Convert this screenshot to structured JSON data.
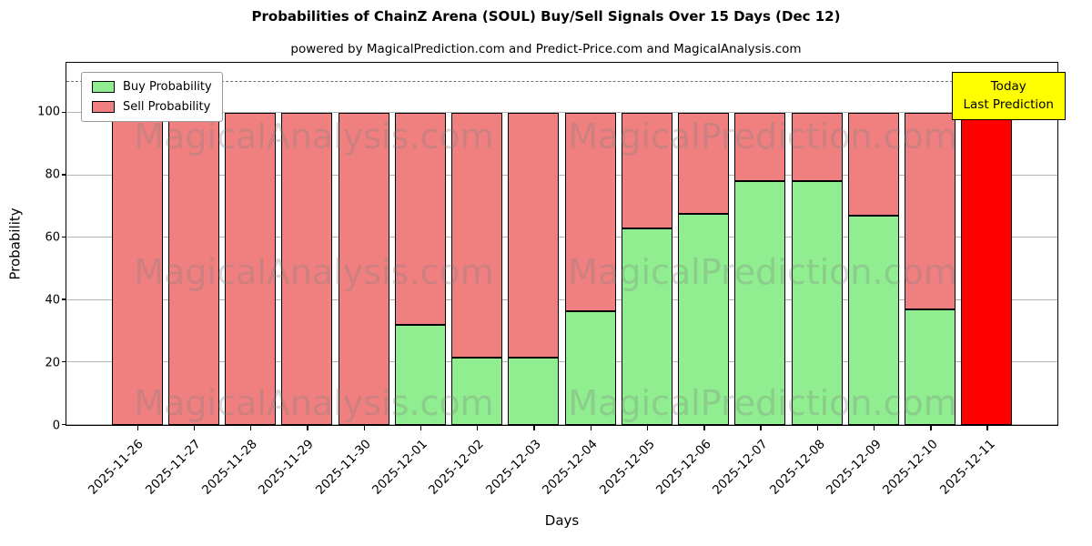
{
  "annotation_box": {
    "line1": "Today",
    "line2": "Last Prediction",
    "bg_color": "#ffff00"
  },
  "watermarks": {
    "left": "MagicalAnalysis.com",
    "right": "MagicalPrediction.com"
  },
  "chart_data": {
    "type": "bar",
    "stacked": true,
    "title": "Probabilities of ChainZ Arena (SOUL) Buy/Sell Signals Over 15 Days (Dec 12)",
    "subtitle": "powered by MagicalPrediction.com and Predict-Price.com and MagicalAnalysis.com",
    "xlabel": "Days",
    "ylabel": "Probability",
    "categories": [
      "2025-11-26",
      "2025-11-27",
      "2025-11-28",
      "2025-11-29",
      "2025-11-30",
      "2025-12-01",
      "2025-12-02",
      "2025-12-03",
      "2025-12-04",
      "2025-12-05",
      "2025-12-06",
      "2025-12-07",
      "2025-12-08",
      "2025-12-09",
      "2025-12-10",
      "2025-12-11"
    ],
    "series": [
      {
        "name": "Buy Probability",
        "color": "#90ee90",
        "values": [
          0,
          0,
          0,
          0,
          0,
          32,
          21.5,
          21.5,
          36.5,
          63,
          67.5,
          78,
          78,
          67,
          37,
          0
        ]
      },
      {
        "name": "Sell Probability",
        "color": "#f08080",
        "values": [
          100,
          100,
          100,
          100,
          100,
          68,
          78.5,
          78.5,
          63.5,
          37,
          32.5,
          22,
          22,
          33,
          63,
          100
        ]
      }
    ],
    "today_index": 15,
    "today_color": "#ff0000",
    "yticks": [
      0,
      20,
      40,
      60,
      80,
      100
    ],
    "ylim": [
      0,
      116
    ],
    "dashed_line_y": 110,
    "grid": true,
    "legend_position": "upper left"
  }
}
